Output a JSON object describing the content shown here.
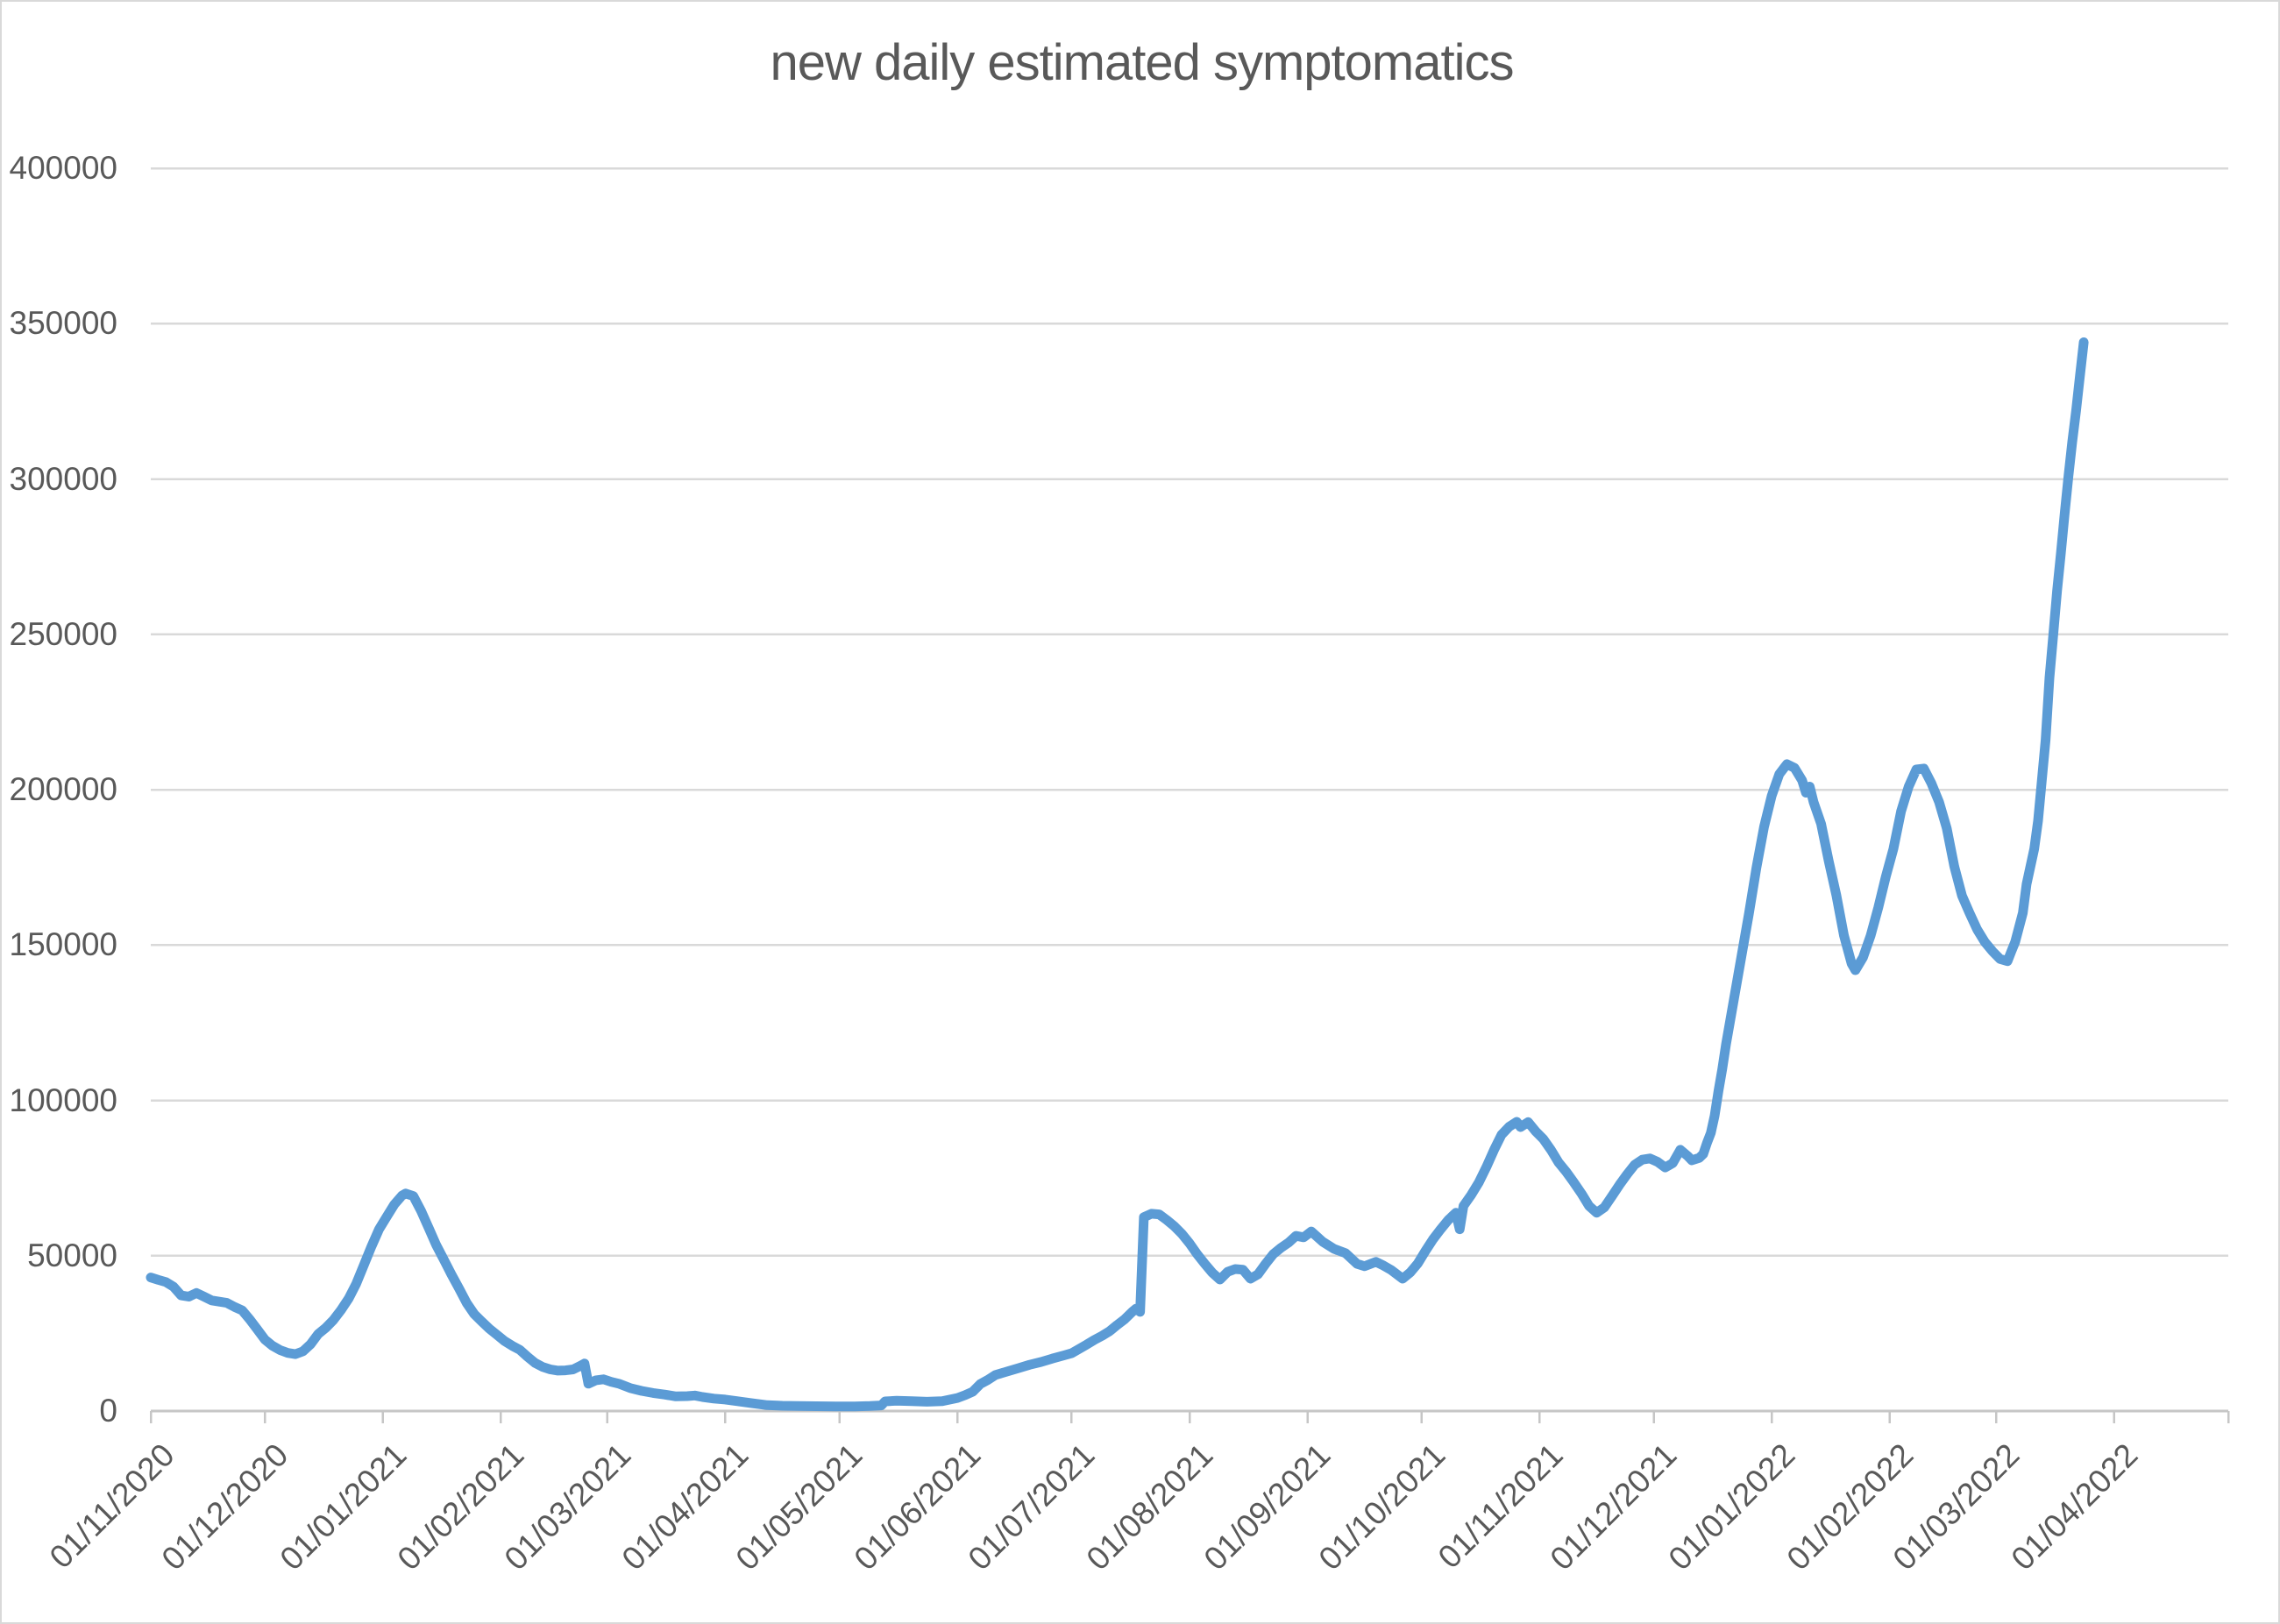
{
  "title": "new daily estimated symptomatics",
  "colors": {
    "line": "#5B9BD5",
    "gridline": "#D9D9D9",
    "axis": "#C6C6C6",
    "text": "#595959",
    "background": "#FFFFFF",
    "border": "#D9D9D9"
  },
  "y_axis": {
    "min": 0,
    "max": 400000,
    "step": 50000,
    "tick_labels": [
      "0",
      "50000",
      "100000",
      "150000",
      "200000",
      "250000",
      "300000",
      "350000",
      "400000"
    ]
  },
  "x_axis": {
    "start_date": "2020-11-01",
    "end_date": "2022-05-01",
    "tick_dates": [
      "2020-11-01",
      "2020-12-01",
      "2021-01-01",
      "2021-02-01",
      "2021-03-01",
      "2021-04-01",
      "2021-05-01",
      "2021-06-01",
      "2021-07-01",
      "2021-08-01",
      "2021-09-01",
      "2021-10-01",
      "2021-11-01",
      "2021-12-01",
      "2022-01-01",
      "2022-02-01",
      "2022-03-01",
      "2022-04-01",
      "2022-05-01"
    ],
    "tick_labels": [
      "01/11/2020",
      "01/12/2020",
      "01/01/2021",
      "01/02/2021",
      "01/03/2021",
      "01/04/2021",
      "01/05/2021",
      "01/06/2021",
      "01/07/2021",
      "01/08/2021",
      "01/09/2021",
      "01/10/2021",
      "01/11/2021",
      "01/12/2021",
      "01/01/2022",
      "01/02/2022",
      "01/03/2022",
      "01/04/2022"
    ]
  },
  "chart_data": {
    "type": "line",
    "title": "new daily estimated symptomatics",
    "xlabel": "",
    "ylabel": "",
    "ylim": [
      0,
      400000
    ],
    "xlim": [
      "2020-11-01",
      "2022-05-01"
    ],
    "grid": "horizontal",
    "legend": "none",
    "series": [
      {
        "name": "new daily estimated symptomatics",
        "points": [
          [
            "2020-11-01",
            43000
          ],
          [
            "2020-11-03",
            42200
          ],
          [
            "2020-11-05",
            41500
          ],
          [
            "2020-11-07",
            40000
          ],
          [
            "2020-11-09",
            37200
          ],
          [
            "2020-11-11",
            36800
          ],
          [
            "2020-11-13",
            38000
          ],
          [
            "2020-11-15",
            36800
          ],
          [
            "2020-11-17",
            35600
          ],
          [
            "2020-11-19",
            35200
          ],
          [
            "2020-11-21",
            34800
          ],
          [
            "2020-11-23",
            33500
          ],
          [
            "2020-11-25",
            32400
          ],
          [
            "2020-11-27",
            29500
          ],
          [
            "2020-11-29",
            26300
          ],
          [
            "2020-12-01",
            23000
          ],
          [
            "2020-12-03",
            21000
          ],
          [
            "2020-12-05",
            19600
          ],
          [
            "2020-12-07",
            18700
          ],
          [
            "2020-12-09",
            18300
          ],
          [
            "2020-12-11",
            19200
          ],
          [
            "2020-12-13",
            21500
          ],
          [
            "2020-12-15",
            24800
          ],
          [
            "2020-12-17",
            26800
          ],
          [
            "2020-12-19",
            29300
          ],
          [
            "2020-12-21",
            32500
          ],
          [
            "2020-12-23",
            36200
          ],
          [
            "2020-12-25",
            41000
          ],
          [
            "2020-12-27",
            47000
          ],
          [
            "2020-12-29",
            53000
          ],
          [
            "2020-12-31",
            58500
          ],
          [
            "2021-01-02",
            62500
          ],
          [
            "2021-01-04",
            66500
          ],
          [
            "2021-01-06",
            69300
          ],
          [
            "2021-01-07",
            70000
          ],
          [
            "2021-01-09",
            69200
          ],
          [
            "2021-01-11",
            64500
          ],
          [
            "2021-01-13",
            59000
          ],
          [
            "2021-01-15",
            53500
          ],
          [
            "2021-01-17",
            48800
          ],
          [
            "2021-01-19",
            44000
          ],
          [
            "2021-01-21",
            39500
          ],
          [
            "2021-01-23",
            34800
          ],
          [
            "2021-01-25",
            31200
          ],
          [
            "2021-01-27",
            28800
          ],
          [
            "2021-01-29",
            26500
          ],
          [
            "2021-01-31",
            24500
          ],
          [
            "2021-02-02",
            22500
          ],
          [
            "2021-02-04",
            21000
          ],
          [
            "2021-02-06",
            19700
          ],
          [
            "2021-02-08",
            17500
          ],
          [
            "2021-02-10",
            15500
          ],
          [
            "2021-02-12",
            14200
          ],
          [
            "2021-02-14",
            13400
          ],
          [
            "2021-02-16",
            13000
          ],
          [
            "2021-02-18",
            13100
          ],
          [
            "2021-02-20",
            13400
          ],
          [
            "2021-02-22",
            14600
          ],
          [
            "2021-02-23",
            15300
          ],
          [
            "2021-02-24",
            8800
          ],
          [
            "2021-02-26",
            9900
          ],
          [
            "2021-02-28",
            10200
          ],
          [
            "2021-03-02",
            9400
          ],
          [
            "2021-03-04",
            8800
          ],
          [
            "2021-03-07",
            7400
          ],
          [
            "2021-03-10",
            6500
          ],
          [
            "2021-03-13",
            5800
          ],
          [
            "2021-03-16",
            5300
          ],
          [
            "2021-03-19",
            4700
          ],
          [
            "2021-03-22",
            4800
          ],
          [
            "2021-03-24",
            5000
          ],
          [
            "2021-03-26",
            4500
          ],
          [
            "2021-03-29",
            4000
          ],
          [
            "2021-04-01",
            3700
          ],
          [
            "2021-04-04",
            3200
          ],
          [
            "2021-04-08",
            2500
          ],
          [
            "2021-04-12",
            1900
          ],
          [
            "2021-04-16",
            1700
          ],
          [
            "2021-04-20",
            1600
          ],
          [
            "2021-04-25",
            1550
          ],
          [
            "2021-04-30",
            1500
          ],
          [
            "2021-05-05",
            1500
          ],
          [
            "2021-05-09",
            1600
          ],
          [
            "2021-05-12",
            1800
          ],
          [
            "2021-05-13",
            3100
          ],
          [
            "2021-05-16",
            3300
          ],
          [
            "2021-05-20",
            3200
          ],
          [
            "2021-05-24",
            3000
          ],
          [
            "2021-05-28",
            3200
          ],
          [
            "2021-06-01",
            4200
          ],
          [
            "2021-06-03",
            5100
          ],
          [
            "2021-06-05",
            6200
          ],
          [
            "2021-06-07",
            8700
          ],
          [
            "2021-06-09",
            10000
          ],
          [
            "2021-06-11",
            11600
          ],
          [
            "2021-06-14",
            12700
          ],
          [
            "2021-06-17",
            13800
          ],
          [
            "2021-06-20",
            14900
          ],
          [
            "2021-06-23",
            15800
          ],
          [
            "2021-06-26",
            16900
          ],
          [
            "2021-06-29",
            17900
          ],
          [
            "2021-07-01",
            18600
          ],
          [
            "2021-07-03",
            20000
          ],
          [
            "2021-07-05",
            21400
          ],
          [
            "2021-07-07",
            22900
          ],
          [
            "2021-07-09",
            24200
          ],
          [
            "2021-07-11",
            25700
          ],
          [
            "2021-07-13",
            27700
          ],
          [
            "2021-07-15",
            29600
          ],
          [
            "2021-07-17",
            32000
          ],
          [
            "2021-07-18",
            33000
          ],
          [
            "2021-07-19",
            31900
          ],
          [
            "2021-07-20",
            62400
          ],
          [
            "2021-07-22",
            63500
          ],
          [
            "2021-07-24",
            63300
          ],
          [
            "2021-07-26",
            61500
          ],
          [
            "2021-07-28",
            59500
          ],
          [
            "2021-07-30",
            57000
          ],
          [
            "2021-08-01",
            54000
          ],
          [
            "2021-08-03",
            50500
          ],
          [
            "2021-08-05",
            47400
          ],
          [
            "2021-08-07",
            44500
          ],
          [
            "2021-08-09",
            42300
          ],
          [
            "2021-08-11",
            44800
          ],
          [
            "2021-08-13",
            45700
          ],
          [
            "2021-08-15",
            45500
          ],
          [
            "2021-08-17",
            42600
          ],
          [
            "2021-08-19",
            44000
          ],
          [
            "2021-08-21",
            47400
          ],
          [
            "2021-08-23",
            50500
          ],
          [
            "2021-08-25",
            52500
          ],
          [
            "2021-08-27",
            54200
          ],
          [
            "2021-08-29",
            56400
          ],
          [
            "2021-08-31",
            55900
          ],
          [
            "2021-09-02",
            57800
          ],
          [
            "2021-09-05",
            54500
          ],
          [
            "2021-09-08",
            52200
          ],
          [
            "2021-09-11",
            50800
          ],
          [
            "2021-09-14",
            47400
          ],
          [
            "2021-09-16",
            46600
          ],
          [
            "2021-09-19",
            48000
          ],
          [
            "2021-09-21",
            46800
          ],
          [
            "2021-09-23",
            45400
          ],
          [
            "2021-09-26",
            42600
          ],
          [
            "2021-09-28",
            44600
          ],
          [
            "2021-09-30",
            47500
          ],
          [
            "2021-10-02",
            51500
          ],
          [
            "2021-10-04",
            55300
          ],
          [
            "2021-10-06",
            58500
          ],
          [
            "2021-10-08",
            61500
          ],
          [
            "2021-10-10",
            63800
          ],
          [
            "2021-10-11",
            58500
          ],
          [
            "2021-10-12",
            66000
          ],
          [
            "2021-10-14",
            69500
          ],
          [
            "2021-10-16",
            73500
          ],
          [
            "2021-10-18",
            78500
          ],
          [
            "2021-10-20",
            84000
          ],
          [
            "2021-10-22",
            88900
          ],
          [
            "2021-10-24",
            91500
          ],
          [
            "2021-10-26",
            93100
          ],
          [
            "2021-10-27",
            91400
          ],
          [
            "2021-10-29",
            93000
          ],
          [
            "2021-10-31",
            90000
          ],
          [
            "2021-11-02",
            87500
          ],
          [
            "2021-11-04",
            84000
          ],
          [
            "2021-11-06",
            80000
          ],
          [
            "2021-11-08",
            77000
          ],
          [
            "2021-11-10",
            73600
          ],
          [
            "2021-11-12",
            70000
          ],
          [
            "2021-11-14",
            66000
          ],
          [
            "2021-11-16",
            63800
          ],
          [
            "2021-11-18",
            65500
          ],
          [
            "2021-11-20",
            69100
          ],
          [
            "2021-11-22",
            72800
          ],
          [
            "2021-11-24",
            76200
          ],
          [
            "2021-11-26",
            79300
          ],
          [
            "2021-11-28",
            80900
          ],
          [
            "2021-11-30",
            81300
          ],
          [
            "2021-12-02",
            80200
          ],
          [
            "2021-12-04",
            78400
          ],
          [
            "2021-12-06",
            79800
          ],
          [
            "2021-12-08",
            84100
          ],
          [
            "2021-12-10",
            82000
          ],
          [
            "2021-12-11",
            80700
          ],
          [
            "2021-12-13",
            81500
          ],
          [
            "2021-12-14",
            82700
          ],
          [
            "2021-12-15",
            86300
          ],
          [
            "2021-12-16",
            89500
          ],
          [
            "2021-12-17",
            95000
          ],
          [
            "2021-12-18",
            103000
          ],
          [
            "2021-12-19",
            110000
          ],
          [
            "2021-12-20",
            118000
          ],
          [
            "2021-12-22",
            132000
          ],
          [
            "2021-12-24",
            146000
          ],
          [
            "2021-12-26",
            160000
          ],
          [
            "2021-12-28",
            175000
          ],
          [
            "2021-12-30",
            188000
          ],
          [
            "2022-01-01",
            198000
          ],
          [
            "2022-01-03",
            205000
          ],
          [
            "2022-01-05",
            208200
          ],
          [
            "2022-01-07",
            207000
          ],
          [
            "2022-01-09",
            203000
          ],
          [
            "2022-01-10",
            199000
          ],
          [
            "2022-01-11",
            201000
          ],
          [
            "2022-01-12",
            196000
          ],
          [
            "2022-01-14",
            189000
          ],
          [
            "2022-01-16",
            177000
          ],
          [
            "2022-01-18",
            166000
          ],
          [
            "2022-01-20",
            153000
          ],
          [
            "2022-01-22",
            144000
          ],
          [
            "2022-01-23",
            141900
          ],
          [
            "2022-01-25",
            146000
          ],
          [
            "2022-01-27",
            153000
          ],
          [
            "2022-01-29",
            162000
          ],
          [
            "2022-01-31",
            172000
          ],
          [
            "2022-02-02",
            181000
          ],
          [
            "2022-02-04",
            193000
          ],
          [
            "2022-02-06",
            201000
          ],
          [
            "2022-02-08",
            206500
          ],
          [
            "2022-02-10",
            206800
          ],
          [
            "2022-02-12",
            202000
          ],
          [
            "2022-02-14",
            196000
          ],
          [
            "2022-02-16",
            187600
          ],
          [
            "2022-02-18",
            175200
          ],
          [
            "2022-02-20",
            165900
          ],
          [
            "2022-02-22",
            160300
          ],
          [
            "2022-02-24",
            155000
          ],
          [
            "2022-02-26",
            151000
          ],
          [
            "2022-02-28",
            148000
          ],
          [
            "2022-03-02",
            145500
          ],
          [
            "2022-03-04",
            144800
          ],
          [
            "2022-03-05",
            148000
          ],
          [
            "2022-03-06",
            151000
          ],
          [
            "2022-03-08",
            160300
          ],
          [
            "2022-03-09",
            169600
          ],
          [
            "2022-03-11",
            180900
          ],
          [
            "2022-03-12",
            190000
          ],
          [
            "2022-03-13",
            203000
          ],
          [
            "2022-03-14",
            216000
          ],
          [
            "2022-03-15",
            236000
          ],
          [
            "2022-03-16",
            249700
          ],
          [
            "2022-03-17",
            264000
          ],
          [
            "2022-03-18",
            276000
          ],
          [
            "2022-03-19",
            289000
          ],
          [
            "2022-03-20",
            301000
          ],
          [
            "2022-03-21",
            312000
          ],
          [
            "2022-03-22",
            322000
          ],
          [
            "2022-03-23",
            333000
          ],
          [
            "2022-03-24",
            344000
          ]
        ]
      }
    ]
  }
}
